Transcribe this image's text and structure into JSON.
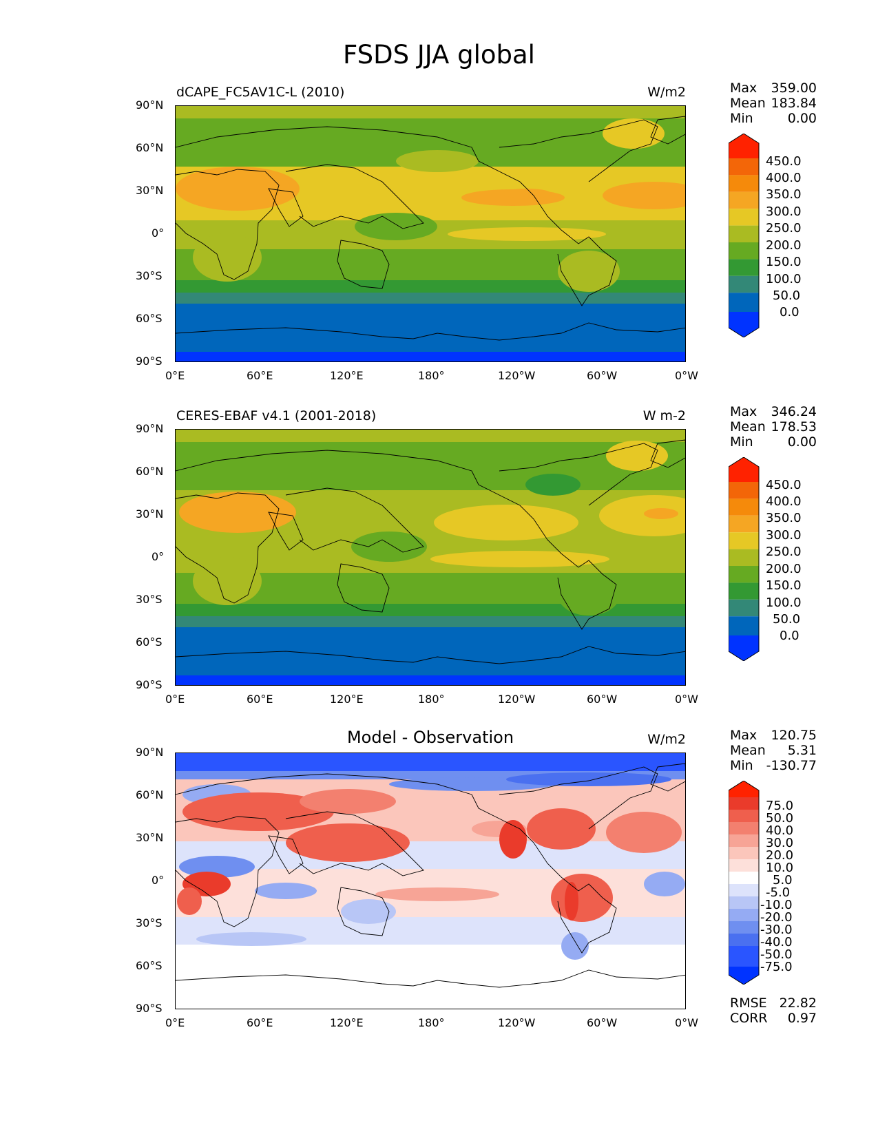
{
  "figure": {
    "title": "FSDS JJA global"
  },
  "axes": {
    "lat_ticks": [
      "90°N",
      "60°N",
      "30°N",
      "0°",
      "30°S",
      "60°S",
      "90°S"
    ],
    "lon_ticks": [
      "0°E",
      "60°E",
      "120°E",
      "180°",
      "120°W",
      "60°W",
      "0°W"
    ]
  },
  "panels": [
    {
      "title": "dCAPE_FC5AV1C-L (2010)",
      "units": "W/m2",
      "stats": [
        {
          "label": "Max",
          "value": "359.00"
        },
        {
          "label": "Mean",
          "value": "183.84"
        },
        {
          "label": "Min",
          "value": "0.00"
        }
      ],
      "colorbar_labels": [
        "450.0",
        "400.0",
        "350.0",
        "300.0",
        "250.0",
        "200.0",
        "150.0",
        "100.0",
        "50.0",
        "0.0"
      ]
    },
    {
      "title": "CERES-EBAF v4.1 (2001-2018)",
      "units": "W m-2",
      "stats": [
        {
          "label": "Max",
          "value": "346.24"
        },
        {
          "label": "Mean",
          "value": "178.53"
        },
        {
          "label": "Min",
          "value": "0.00"
        }
      ],
      "colorbar_labels": [
        "450.0",
        "400.0",
        "350.0",
        "300.0",
        "250.0",
        "200.0",
        "150.0",
        "100.0",
        "50.0",
        "0.0"
      ]
    },
    {
      "title": "Model - Observation",
      "units": "W/m2",
      "stats": [
        {
          "label": "Max",
          "value": "120.75"
        },
        {
          "label": "Mean",
          "value": "5.31"
        },
        {
          "label": "Min",
          "value": "-130.77"
        }
      ],
      "colorbar_labels": [
        "75.0",
        "50.0",
        "40.0",
        "30.0",
        "20.0",
        "10.0",
        "5.0",
        "-5.0",
        "-10.0",
        "-20.0",
        "-30.0",
        "-40.0",
        "-50.0",
        "-75.0"
      ],
      "footer_stats": [
        {
          "label": "RMSE",
          "value": "22.82"
        },
        {
          "label": "CORR",
          "value": "0.97"
        }
      ]
    }
  ],
  "colors": {
    "abs_scale": [
      "#0033ff",
      "#0066bb",
      "#338877",
      "#339933",
      "#66aa22",
      "#aabb22",
      "#e6c825",
      "#f5a623",
      "#f58a0b",
      "#f36608",
      "#ff2200"
    ],
    "diff_scale": [
      "#0033ff",
      "#2a55ff",
      "#4a70f0",
      "#6f8ff0",
      "#95abf3",
      "#b8c6f6",
      "#dde3fb",
      "#ffffff",
      "#fde0da",
      "#fbc6bb",
      "#f7a496",
      "#f3806f",
      "#ef5f4d",
      "#ea3b2b",
      "#ff2200"
    ]
  },
  "chart_data": [
    {
      "type": "heatmap",
      "title": "dCAPE_FC5AV1C-L (2010)",
      "variable": "FSDS",
      "season": "JJA",
      "units": "W/m2",
      "xlim": [
        0,
        360
      ],
      "ylim": [
        -90,
        90
      ],
      "colorbar_levels": [
        0,
        50,
        100,
        150,
        200,
        250,
        300,
        350,
        400,
        450
      ],
      "stats": {
        "max": 359.0,
        "mean": 183.84,
        "min": 0.0
      },
      "zonal_bands": [
        {
          "lat": [
            80,
            90
          ],
          "value": 210
        },
        {
          "lat": [
            65,
            80
          ],
          "value": 185
        },
        {
          "lat": [
            45,
            65
          ],
          "value": 205
        },
        {
          "lat": [
            15,
            45
          ],
          "value": 290
        },
        {
          "lat": [
            -5,
            15
          ],
          "value": 230
        },
        {
          "lat": [
            -30,
            -5
          ],
          "value": 175
        },
        {
          "lat": [
            -40,
            -30
          ],
          "value": 130
        },
        {
          "lat": [
            -50,
            -40
          ],
          "value": 80
        },
        {
          "lat": [
            -84,
            -50
          ],
          "value": 25
        },
        {
          "lat": [
            -90,
            -84
          ],
          "value": 0
        }
      ]
    },
    {
      "type": "heatmap",
      "title": "CERES-EBAF v4.1 (2001-2018)",
      "variable": "FSDS",
      "season": "JJA",
      "units": "W m-2",
      "xlim": [
        0,
        360
      ],
      "ylim": [
        -90,
        90
      ],
      "colorbar_levels": [
        0,
        50,
        100,
        150,
        200,
        250,
        300,
        350,
        400,
        450
      ],
      "stats": {
        "max": 346.24,
        "mean": 178.53,
        "min": 0.0
      },
      "zonal_bands": [
        {
          "lat": [
            80,
            90
          ],
          "value": 225
        },
        {
          "lat": [
            65,
            80
          ],
          "value": 180
        },
        {
          "lat": [
            45,
            65
          ],
          "value": 190
        },
        {
          "lat": [
            15,
            45
          ],
          "value": 275
        },
        {
          "lat": [
            -5,
            15
          ],
          "value": 230
        },
        {
          "lat": [
            -30,
            -5
          ],
          "value": 170
        },
        {
          "lat": [
            -40,
            -30
          ],
          "value": 125
        },
        {
          "lat": [
            -50,
            -40
          ],
          "value": 80
        },
        {
          "lat": [
            -84,
            -50
          ],
          "value": 25
        },
        {
          "lat": [
            -90,
            -84
          ],
          "value": 0
        }
      ]
    },
    {
      "type": "heatmap",
      "title": "Model - Observation",
      "variable": "FSDS",
      "season": "JJA",
      "units": "W/m2",
      "xlim": [
        0,
        360
      ],
      "ylim": [
        -90,
        90
      ],
      "colorbar_levels": [
        -75,
        -50,
        -40,
        -30,
        -20,
        -10,
        -5,
        5,
        10,
        20,
        30,
        40,
        50,
        75
      ],
      "stats": {
        "max": 120.75,
        "mean": 5.31,
        "min": -130.77,
        "rmse": 22.82,
        "corr": 0.97
      },
      "zonal_bands": [
        {
          "lat": [
            80,
            90
          ],
          "value": -60
        },
        {
          "lat": [
            65,
            80
          ],
          "value": 15
        },
        {
          "lat": [
            45,
            65
          ],
          "value": 25
        },
        {
          "lat": [
            15,
            45
          ],
          "value": 25
        },
        {
          "lat": [
            -5,
            15
          ],
          "value": -10
        },
        {
          "lat": [
            -30,
            -5
          ],
          "value": 10
        },
        {
          "lat": [
            -50,
            -30
          ],
          "value": -5
        },
        {
          "lat": [
            -90,
            -50
          ],
          "value": 0
        }
      ]
    }
  ]
}
